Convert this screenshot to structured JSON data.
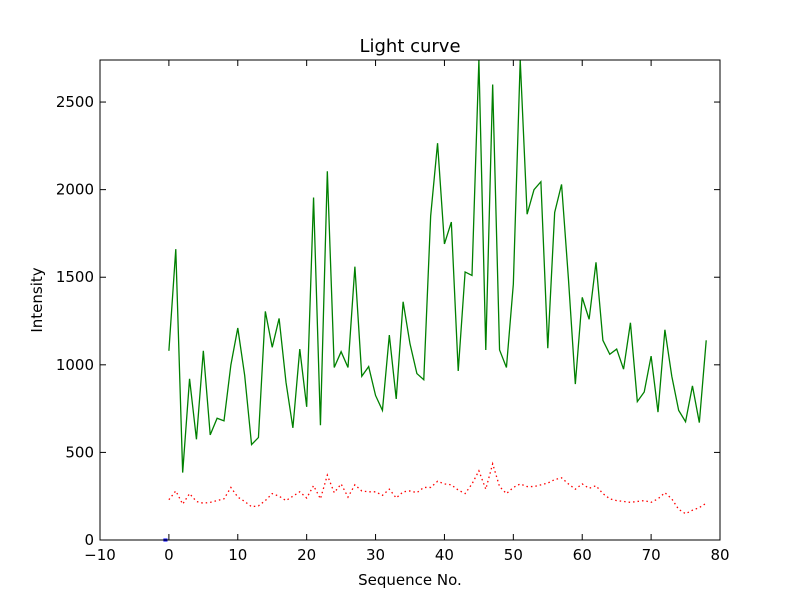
{
  "chart_data": {
    "type": "line",
    "title": "Light curve",
    "xlabel": "Sequence No.",
    "ylabel": "Intensity",
    "xlim": [
      -10,
      80
    ],
    "ylim": [
      0,
      2740
    ],
    "xticks": [
      -10,
      0,
      10,
      20,
      30,
      40,
      50,
      60,
      70,
      80
    ],
    "xtick_labels": [
      "−10",
      "0",
      "10",
      "20",
      "30",
      "40",
      "50",
      "60",
      "70",
      "80"
    ],
    "yticks": [
      0,
      500,
      1000,
      1500,
      2000,
      2500
    ],
    "ytick_labels": [
      "0",
      "500",
      "1000",
      "1500",
      "2000",
      "2500"
    ],
    "grid": false,
    "series": [
      {
        "style": "solid",
        "color": "#008000",
        "x": [
          0,
          1,
          2,
          3,
          4,
          5,
          6,
          7,
          8,
          9,
          10,
          11,
          12,
          13,
          14,
          15,
          16,
          17,
          18,
          19,
          20,
          21,
          22,
          23,
          24,
          25,
          26,
          27,
          28,
          29,
          30,
          31,
          32,
          33,
          34,
          35,
          36,
          37,
          38,
          39,
          40,
          41,
          42,
          43,
          44,
          45,
          46,
          47,
          48,
          49,
          50,
          51,
          52,
          53,
          54,
          55,
          56,
          57,
          58,
          59,
          60,
          61,
          62,
          63,
          64,
          65,
          66,
          67,
          68,
          69,
          70,
          71,
          72,
          73,
          74,
          75,
          76,
          77,
          78
        ],
        "values": [
          1080,
          1660,
          385,
          920,
          575,
          1080,
          600,
          695,
          680,
          1000,
          1210,
          940,
          545,
          585,
          1305,
          1100,
          1265,
          900,
          640,
          1090,
          760,
          1955,
          655,
          2105,
          985,
          1075,
          985,
          1560,
          935,
          990,
          825,
          740,
          1170,
          805,
          1360,
          1120,
          950,
          915,
          1850,
          2265,
          1690,
          1815,
          965,
          1530,
          1510,
          2740,
          1085,
          2600,
          1085,
          985,
          1460,
          2740,
          1860,
          2000,
          2045,
          1095,
          1870,
          2030,
          1490,
          890,
          1385,
          1260,
          1585,
          1140,
          1060,
          1090,
          975,
          1240,
          790,
          845,
          1050,
          730,
          1200,
          935,
          740,
          675,
          880,
          670,
          1140
        ]
      },
      {
        "style": "dotted",
        "color": "#ff0000",
        "x": [
          0,
          1,
          2,
          3,
          4,
          5,
          6,
          7,
          8,
          9,
          10,
          11,
          12,
          13,
          14,
          15,
          16,
          17,
          18,
          19,
          20,
          21,
          22,
          23,
          24,
          25,
          26,
          27,
          28,
          29,
          30,
          31,
          32,
          33,
          34,
          35,
          36,
          37,
          38,
          39,
          40,
          41,
          42,
          43,
          44,
          45,
          46,
          47,
          48,
          49,
          50,
          51,
          52,
          53,
          54,
          55,
          56,
          57,
          58,
          59,
          60,
          61,
          62,
          63,
          64,
          65,
          66,
          67,
          68,
          69,
          70,
          71,
          72,
          73,
          74,
          75,
          76,
          77,
          78
        ],
        "values": [
          230,
          280,
          205,
          265,
          220,
          210,
          215,
          225,
          235,
          300,
          245,
          220,
          190,
          195,
          225,
          265,
          250,
          225,
          250,
          275,
          240,
          310,
          235,
          370,
          270,
          320,
          245,
          315,
          280,
          275,
          275,
          255,
          290,
          240,
          275,
          280,
          270,
          300,
          300,
          335,
          320,
          315,
          285,
          265,
          320,
          395,
          290,
          435,
          305,
          265,
          300,
          320,
          305,
          305,
          315,
          325,
          345,
          355,
          320,
          290,
          320,
          295,
          310,
          265,
          235,
          225,
          220,
          215,
          220,
          225,
          215,
          235,
          270,
          235,
          175,
          150,
          170,
          185,
          210
        ]
      },
      {
        "style": "solid",
        "color": "#0000ff",
        "x": [
          -0.8,
          -0.2
        ],
        "values": [
          0,
          0
        ]
      }
    ]
  }
}
